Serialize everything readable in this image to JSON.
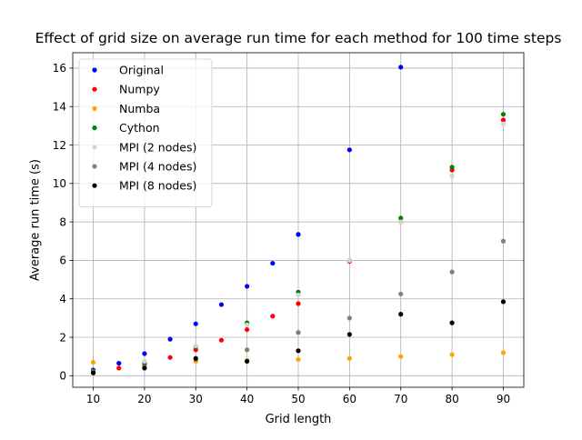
{
  "chart_data": {
    "type": "scatter",
    "title": "Effect of grid size on average run time for each method for 100 time steps",
    "xlabel": "Grid length",
    "ylabel": "Average run time (s)",
    "xlim": [
      6,
      94
    ],
    "ylim": [
      -0.6,
      16.8
    ],
    "xticks": [
      10,
      20,
      30,
      40,
      50,
      60,
      70,
      80,
      90
    ],
    "yticks": [
      0,
      2,
      4,
      6,
      8,
      10,
      12,
      14,
      16
    ],
    "grid": true,
    "legend_position": "top-left",
    "series": [
      {
        "name": "Original",
        "color": "#0000ff",
        "x": [
          10,
          15,
          20,
          25,
          30,
          35,
          40,
          45,
          50,
          60,
          70
        ],
        "y": [
          0.3,
          0.65,
          1.15,
          1.9,
          2.7,
          3.7,
          4.65,
          5.85,
          7.35,
          11.75,
          16.05
        ]
      },
      {
        "name": "Numpy",
        "color": "#ff0000",
        "x": [
          10,
          15,
          20,
          25,
          30,
          35,
          40,
          45,
          50,
          60,
          70,
          80,
          90
        ],
        "y": [
          0.15,
          0.4,
          0.6,
          0.95,
          1.35,
          1.85,
          2.4,
          3.1,
          3.75,
          5.95,
          8.0,
          10.7,
          13.3
        ]
      },
      {
        "name": "Numba",
        "color": "#ffa500",
        "x": [
          10,
          20,
          30,
          40,
          50,
          60,
          70,
          80,
          90
        ],
        "y": [
          0.7,
          0.7,
          0.75,
          0.8,
          0.85,
          0.9,
          1.0,
          1.1,
          1.2
        ]
      },
      {
        "name": "Cython",
        "color": "#008000",
        "x": [
          10,
          20,
          30,
          40,
          50,
          60,
          70,
          80,
          90
        ],
        "y": [
          0.25,
          0.65,
          1.5,
          2.75,
          4.35,
          6.0,
          8.2,
          10.85,
          13.6
        ]
      },
      {
        "name": "MPI (2 nodes)",
        "color": "#d3d3d3",
        "x": [
          10,
          20,
          30,
          40,
          50,
          60,
          70,
          80,
          90
        ],
        "y": [
          0.2,
          0.75,
          1.55,
          2.65,
          4.2,
          6.0,
          8.0,
          10.4,
          13.1
        ]
      },
      {
        "name": "MPI (4 nodes)",
        "color": "#808080",
        "x": [
          10,
          20,
          30,
          40,
          50,
          60,
          70,
          80,
          90
        ],
        "y": [
          0.2,
          0.45,
          0.85,
          1.35,
          2.25,
          3.0,
          4.25,
          5.4,
          7.0
        ]
      },
      {
        "name": "MPI (8 nodes)",
        "color": "#000000",
        "x": [
          10,
          20,
          30,
          40,
          50,
          60,
          70,
          80,
          90
        ],
        "y": [
          0.15,
          0.4,
          0.9,
          0.75,
          1.3,
          2.15,
          3.2,
          2.75,
          3.85
        ]
      }
    ]
  }
}
